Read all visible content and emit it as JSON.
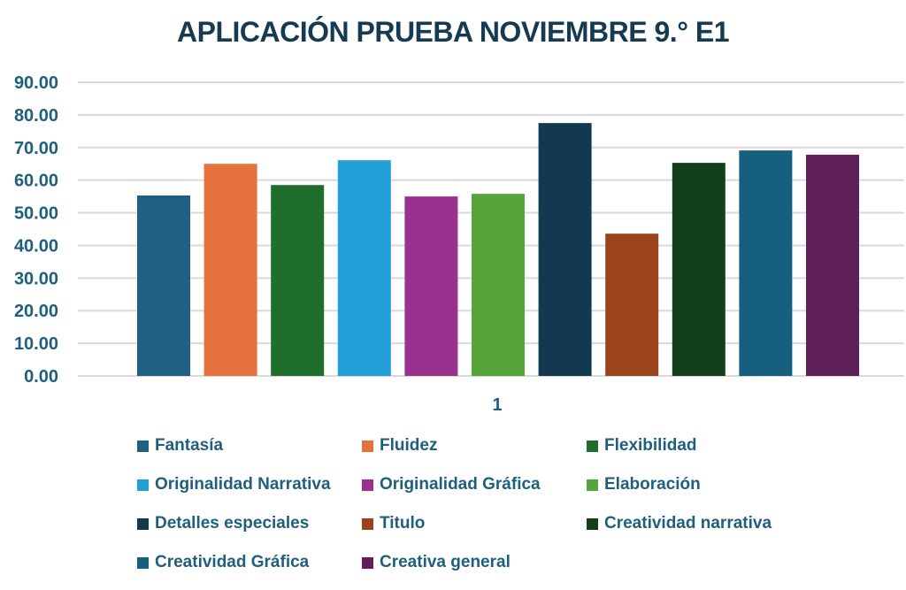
{
  "chart_data": {
    "type": "bar",
    "title": "APLICACIÓN PRUEBA NOVIEMBRE 9.° E1",
    "xlabel": "",
    "ylabel": "",
    "categories": [
      "1"
    ],
    "ylim": [
      0,
      90
    ],
    "yticks": [
      "0.00",
      "10.00",
      "20.00",
      "30.00",
      "40.00",
      "50.00",
      "60.00",
      "70.00",
      "80.00",
      "90.00"
    ],
    "grid": true,
    "legend_position": "bottom",
    "series": [
      {
        "name": "Fantasía",
        "values": [
          55.3
        ],
        "color": "#1f6182"
      },
      {
        "name": "Fluidez",
        "values": [
          65.0
        ],
        "color": "#e5723c"
      },
      {
        "name": "Flexibilidad",
        "values": [
          58.5
        ],
        "color": "#1f6e2c"
      },
      {
        "name": "Originalidad Narrativa",
        "values": [
          66.1
        ],
        "color": "#219fd6"
      },
      {
        "name": "Originalidad Gráfica",
        "values": [
          55.0
        ],
        "color": "#9b318f"
      },
      {
        "name": "Elaboración",
        "values": [
          55.8
        ],
        "color": "#55a53a"
      },
      {
        "name": "Detalles especiales",
        "values": [
          77.5
        ],
        "color": "#12394f"
      },
      {
        "name": "Titulo",
        "values": [
          43.6
        ],
        "color": "#9a431c"
      },
      {
        "name": "Creatividad narrativa",
        "values": [
          65.3
        ],
        "color": "#133f1a"
      },
      {
        "name": "Creatividad Gráfica",
        "values": [
          69.1
        ],
        "color": "#175f7f"
      },
      {
        "name": "Creativa general",
        "values": [
          67.8
        ],
        "color": "#5f1f57"
      }
    ]
  }
}
